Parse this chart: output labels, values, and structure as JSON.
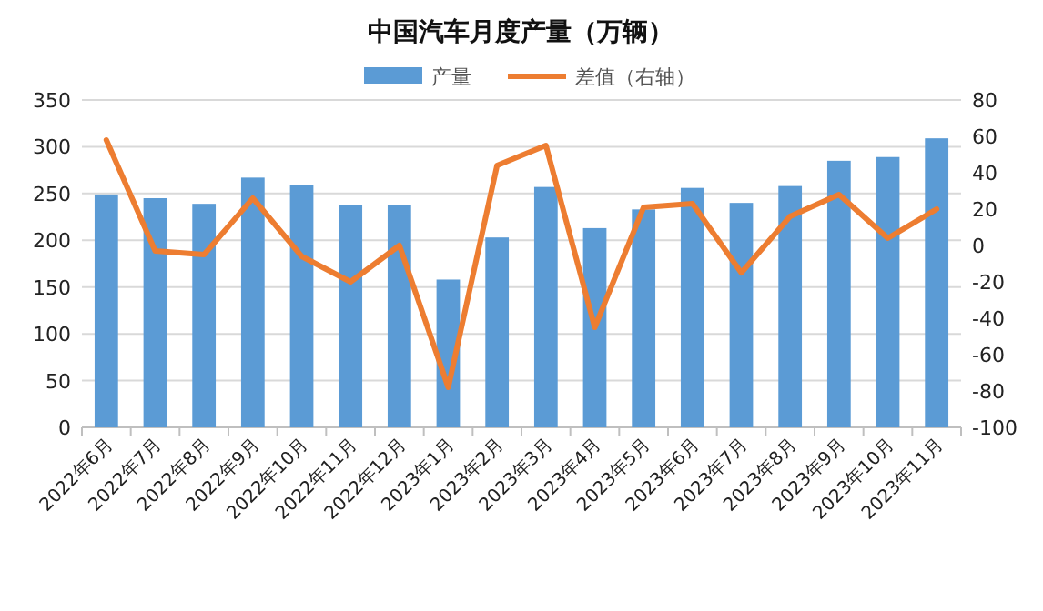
{
  "chart_data": {
    "type": "bar",
    "title": "中国汽车月度产量（万辆）",
    "categories": [
      "2022年6月",
      "2022年7月",
      "2022年8月",
      "2022年9月",
      "2022年10月",
      "2022年11月",
      "2022年12月",
      "2023年1月",
      "2023年2月",
      "2023年3月",
      "2023年4月",
      "2023年5月",
      "2023年6月",
      "2023年7月",
      "2023年8月",
      "2023年9月",
      "2023年10月",
      "2023年11月"
    ],
    "series": [
      {
        "name": "产量",
        "color": "#5b9bd5",
        "values": [
          249,
          245,
          239,
          267,
          259,
          238,
          238,
          158,
          203,
          257,
          213,
          233,
          256,
          240,
          258,
          285,
          289,
          309
        ]
      },
      {
        "name": "差值（右轴）",
        "type": "line",
        "axis": "y2",
        "color": "#ed7d31",
        "values": [
          58,
          -3,
          -5,
          26,
          -6,
          -20,
          0,
          -78,
          44,
          55,
          -45,
          21,
          23,
          -15,
          16,
          28,
          4,
          20
        ]
      }
    ],
    "ylim": [
      0,
      350
    ],
    "yticks": [
      0,
      50,
      100,
      150,
      200,
      250,
      300,
      350
    ],
    "y2lim": [
      -100,
      80
    ],
    "y2ticks": [
      -100,
      -80,
      -60,
      -40,
      -20,
      0,
      20,
      40,
      60,
      80
    ],
    "grid": "y",
    "legend": "top",
    "marker": "none",
    "line_style": "solid"
  }
}
